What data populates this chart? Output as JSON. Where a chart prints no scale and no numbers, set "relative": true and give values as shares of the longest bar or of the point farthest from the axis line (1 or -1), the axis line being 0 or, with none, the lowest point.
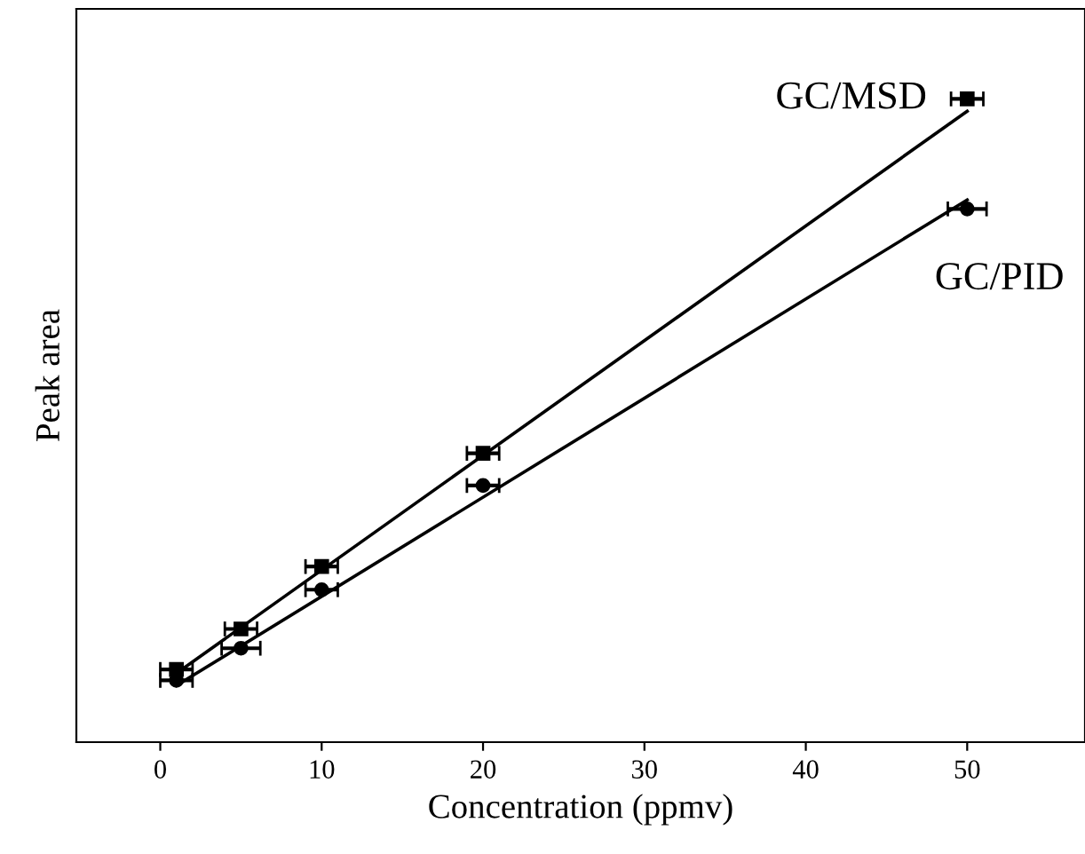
{
  "chart_data": {
    "type": "scatter",
    "xlabel": "Concentration (ppmv)",
    "ylabel": "Peak area",
    "relative": true,
    "xlim": [
      -5.2,
      57.3
    ],
    "xticks": [
      0,
      10,
      20,
      30,
      40,
      50
    ],
    "grid": false,
    "series": [
      {
        "name": "GC/MSD",
        "marker": "square",
        "color": "#000000",
        "x": [
          1,
          5,
          10,
          20,
          50
        ],
        "values": [
          0.113,
          0.176,
          0.273,
          0.449,
          1
        ],
        "xerrors": [
          1,
          1,
          1,
          1,
          1
        ]
      },
      {
        "name": "GC/PID",
        "marker": "circle",
        "color": "#000000",
        "x": [
          1,
          5,
          10,
          20,
          50
        ],
        "values": [
          0.096,
          0.146,
          0.237,
          0.399,
          0.829
        ],
        "xerrors": [
          1,
          1.2,
          1,
          1,
          1.2
        ]
      },
      {
        "type": "line",
        "color": "#000000",
        "x": [
          1,
          50
        ],
        "values": [
          0.107,
          0.981
        ]
      },
      {
        "type": "line",
        "color": "#000000",
        "x": [
          1,
          50
        ],
        "values": [
          0.088,
          0.843
        ]
      }
    ]
  }
}
